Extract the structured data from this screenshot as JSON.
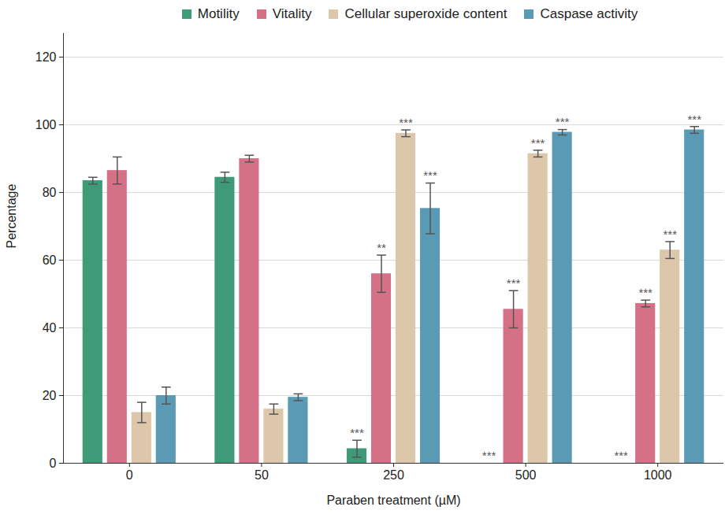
{
  "chart_data": {
    "type": "bar",
    "x_label": "Paraben treatment (µM)",
    "y_label": "Percentage",
    "categories": [
      "0",
      "50",
      "250",
      "500",
      "1000"
    ],
    "series": [
      {
        "name": "Motility",
        "color": "#3f9a78",
        "values": [
          83.5,
          84.5,
          4.3,
          0,
          0
        ],
        "errors": [
          1,
          1.5,
          2.5,
          null,
          null
        ],
        "significance": [
          null,
          null,
          "***",
          "***",
          "***"
        ]
      },
      {
        "name": "Vitality",
        "color": "#d57186",
        "values": [
          86.5,
          90,
          56,
          45.5,
          47.2
        ],
        "errors": [
          4,
          1,
          5.5,
          5.5,
          1
        ],
        "significance": [
          null,
          null,
          "**",
          "***",
          "***"
        ]
      },
      {
        "name": "Cellular superoxide content",
        "color": "#dcc7ab",
        "values": [
          15,
          16,
          97.5,
          91.5,
          63
        ],
        "errors": [
          3,
          1.5,
          1,
          1,
          2.5
        ],
        "significance": [
          null,
          null,
          "***",
          "***",
          "***"
        ]
      },
      {
        "name": "Caspase activity",
        "color": "#5b9ab5",
        "values": [
          20,
          19.5,
          75.3,
          97.8,
          98.5
        ],
        "errors": [
          2.5,
          1,
          7.5,
          0.8,
          1
        ],
        "significance": [
          null,
          null,
          "***",
          "***",
          "***"
        ]
      }
    ],
    "ylim": [
      0,
      127
    ],
    "yticks": [
      0,
      20,
      40,
      60,
      80,
      100,
      120
    ],
    "grid": true,
    "legend": "top"
  }
}
